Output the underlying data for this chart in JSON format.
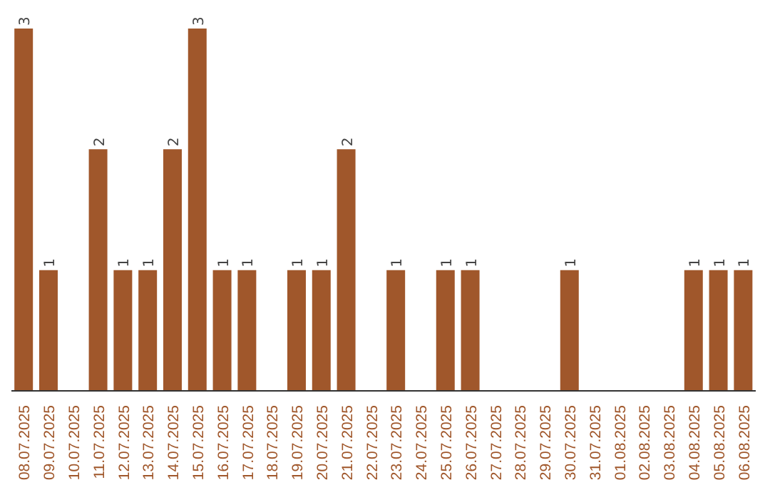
{
  "chart_data": {
    "type": "bar",
    "categories": [
      "08.07.2025",
      "09.07.2025",
      "10.07.2025",
      "11.07.2025",
      "12.07.2025",
      "13.07.2025",
      "14.07.2025",
      "15.07.2025",
      "16.07.2025",
      "17.07.2025",
      "18.07.2025",
      "19.07.2025",
      "20.07.2025",
      "21.07.2025",
      "22.07.2025",
      "23.07.2025",
      "24.07.2025",
      "25.07.2025",
      "26.07.2025",
      "27.07.2025",
      "28.07.2025",
      "29.07.2025",
      "30.07.2025",
      "31.07.2025",
      "01.08.2025",
      "02.08.2025",
      "03.08.2025",
      "04.08.2025",
      "05.08.2025",
      "06.08.2025"
    ],
    "values": [
      3,
      1,
      0,
      2,
      1,
      1,
      2,
      3,
      1,
      1,
      0,
      1,
      1,
      2,
      0,
      1,
      0,
      1,
      1,
      0,
      0,
      0,
      1,
      0,
      0,
      0,
      0,
      1,
      1,
      1
    ],
    "value_labels": [
      "3",
      "1",
      null,
      "2",
      "1",
      "1",
      "2",
      "3",
      "1",
      "1",
      null,
      "1",
      "1",
      "2",
      null,
      "1",
      null,
      "1",
      "1",
      null,
      null,
      null,
      "1",
      null,
      null,
      null,
      null,
      "1",
      "1",
      "1"
    ],
    "color": "#a0572b",
    "grid": false,
    "legend": false
  }
}
